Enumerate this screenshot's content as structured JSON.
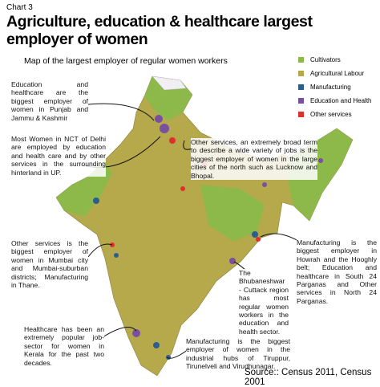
{
  "header": {
    "chart_label": "Chart 3",
    "title_lines": [
      "Agriculture, education & healthcare largest",
      "employer of women"
    ],
    "subtitle": "Map of the largest employer of regular women workers"
  },
  "legend": [
    {
      "label": "Cultivators",
      "color": "#8db84a"
    },
    {
      "label": "Agricultural Labour",
      "color": "#b5a94c"
    },
    {
      "label": "Manufacturing",
      "color": "#2b5e8f"
    },
    {
      "label": "Education and Health",
      "color": "#7a4f9f"
    },
    {
      "label": "Other services",
      "color": "#e0302e"
    }
  ],
  "annotations": [
    "Education and healthcare are the biggest employer of women in Punjab and Jammu & Kashmir",
    "Most Women in NCT of Delhi are employed by education and health care and by other services in the surrounding hinterland in UP.",
    "Other services, an extremely broad term to describe a wide variety of jobs is the biggest employer of women in the large cities of the north such as Lucknow and Bhopal.",
    "Manufacturing is the biggest employer in Howrah and the Hooghly belt; Education and healthcare in South 24 Parganas and Other services in North 24 Parganas.",
    "Other services is the biggest employer of women in Mumbai city and Mumbai-suburban districts; Manufacturing in Thane.",
    "The Bhubaneshwar - Cuttack region has most regular women workers in the education and health sector.",
    "Healthcare has been an extremely popular job-sector for women in Kerala for the past two decades.",
    "Manufacturing is the biggest employer of women in the industrial hubs of Tiruppur, Tirunelveli and Virudhunagar."
  ],
  "source": "Source:: Census 2011, Census 2001"
}
